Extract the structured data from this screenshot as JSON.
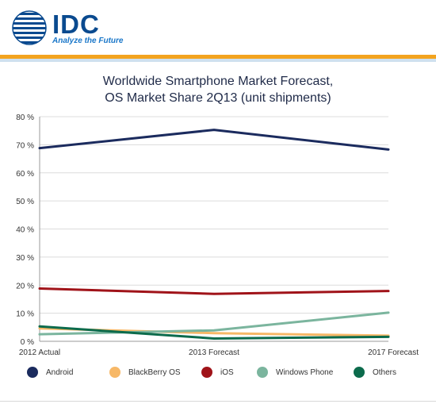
{
  "logo": {
    "text": "IDC",
    "tagline": "Analyze the Future"
  },
  "colors": {
    "brand": "#0a4a8f",
    "accent": "#f3a41f"
  },
  "chart_data": {
    "type": "line",
    "title_line1": "Worldwide Smartphone Market Forecast,",
    "title_line2": "OS Market Share 2Q13 (unit shipments)",
    "categories": [
      "2012 Actual",
      "2013 Forecast",
      "2017 Forecast"
    ],
    "ylim": [
      0,
      80
    ],
    "yticks": [
      "0 %",
      "10 %",
      "20 %",
      "30 %",
      "40 %",
      "50 %",
      "60 %",
      "70 %",
      "80 %"
    ],
    "grid": true,
    "legend_position": "bottom",
    "series": [
      {
        "name": "Android",
        "color": "#1b2b5e",
        "values": [
          68.8,
          75.3,
          68.3
        ]
      },
      {
        "name": "BlackBerry OS",
        "color": "#f7b867",
        "values": [
          4.6,
          2.9,
          2.0
        ]
      },
      {
        "name": "iOS",
        "color": "#a01319",
        "values": [
          18.8,
          16.9,
          17.9
        ]
      },
      {
        "name": "Windows Phone",
        "color": "#7bb59e",
        "values": [
          2.5,
          3.9,
          10.2
        ]
      },
      {
        "name": "Others",
        "color": "#0c6b4c",
        "values": [
          5.3,
          1.0,
          1.6
        ]
      }
    ]
  }
}
